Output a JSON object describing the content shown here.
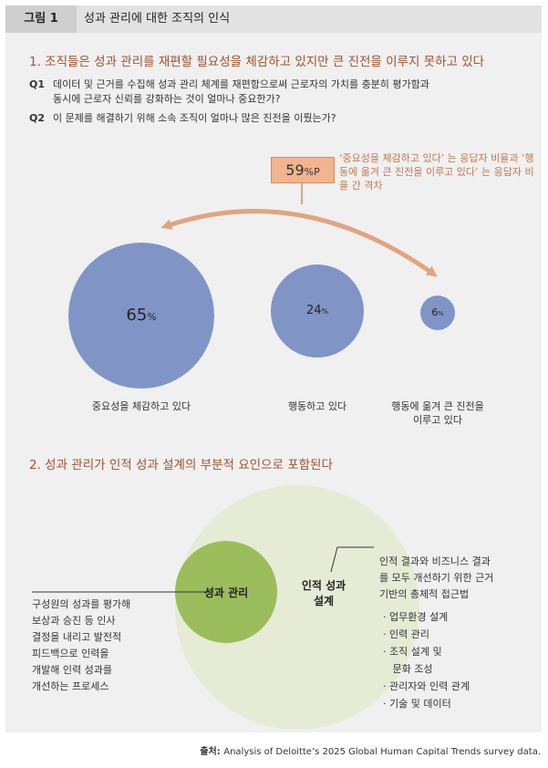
{
  "header": {
    "figure_label": "그림 1",
    "title": "성과 관리에 대한 조직의 인식"
  },
  "section1": {
    "title": "1. 조직들은 성과 관리를 재편할 필요성을 체감하고 있지만 큰 진전을 이루지 못하고 있다",
    "q1_num": "Q1",
    "q1_line1": "데이터 및 근거를 수집해 성과 관리 체계를 재편함으로써 근로자의 가치를 충분히 평가함과",
    "q1_line2": "동시에 근로자 신뢰를 강화하는 것이 얼마나 중요한가?",
    "q2_num": "Q2",
    "q2_text": "이 문제를 해결하기 위해 소속 조직이 얼마나 많은 진전을 이뤘는가?",
    "gap_value": "59",
    "gap_unit": "%P",
    "gap_note": "‘중요성을 체감하고 있다’ 는 응답자 비율과 ‘행동에 옮겨 큰 진전을 이루고 있다’ 는 응답자 비율 간 격차",
    "circles": [
      {
        "value": "65",
        "unit": "%",
        "label_line1": "중요성을 체감하고 있다",
        "label_line2": ""
      },
      {
        "value": "24",
        "unit": "%",
        "label_line1": "행동하고 있다",
        "label_line2": ""
      },
      {
        "value": "6",
        "unit": "%",
        "label_line1": "행동에 옮겨 큰 진전을",
        "label_line2": "이루고 있다"
      }
    ]
  },
  "section2": {
    "title": "2. 성과 관리가 인적 성과 설계의 부분적 요인으로 포함된다",
    "inner_label": "성과 관리",
    "outer_label_line1": "인적 성과",
    "outer_label_line2": "설계",
    "left_desc": [
      "구성원의 성과를 평가해",
      "보상과 승진 등 인사",
      "결정을 내리고 발전적",
      "피드백으로 인력을",
      "개발해 인력 성과를",
      "개선하는 프로세스"
    ],
    "right_desc": [
      "인적 결과와 비즈니스 결과",
      "를 모두 개선하기 위한 근거",
      "기반의 총체적 접근법"
    ],
    "bullets": [
      "· 업무환경 설계",
      "· 인력 관리",
      "· 조직 설계 및",
      "   문화 조성",
      "· 관리자와 인력 관계",
      "· 기술 및 데이터"
    ]
  },
  "source": {
    "prefix": "출처: ",
    "text": "Analysis of Deloitte’s 2025 Global Human Capital Trends survey data."
  },
  "colors": {
    "circle_blue": "#8095c6",
    "arrow": "#e0a482",
    "venn_outer": "#e6ebd5",
    "venn_inner": "#9bbd5c",
    "title_brown": "#a0522d"
  }
}
